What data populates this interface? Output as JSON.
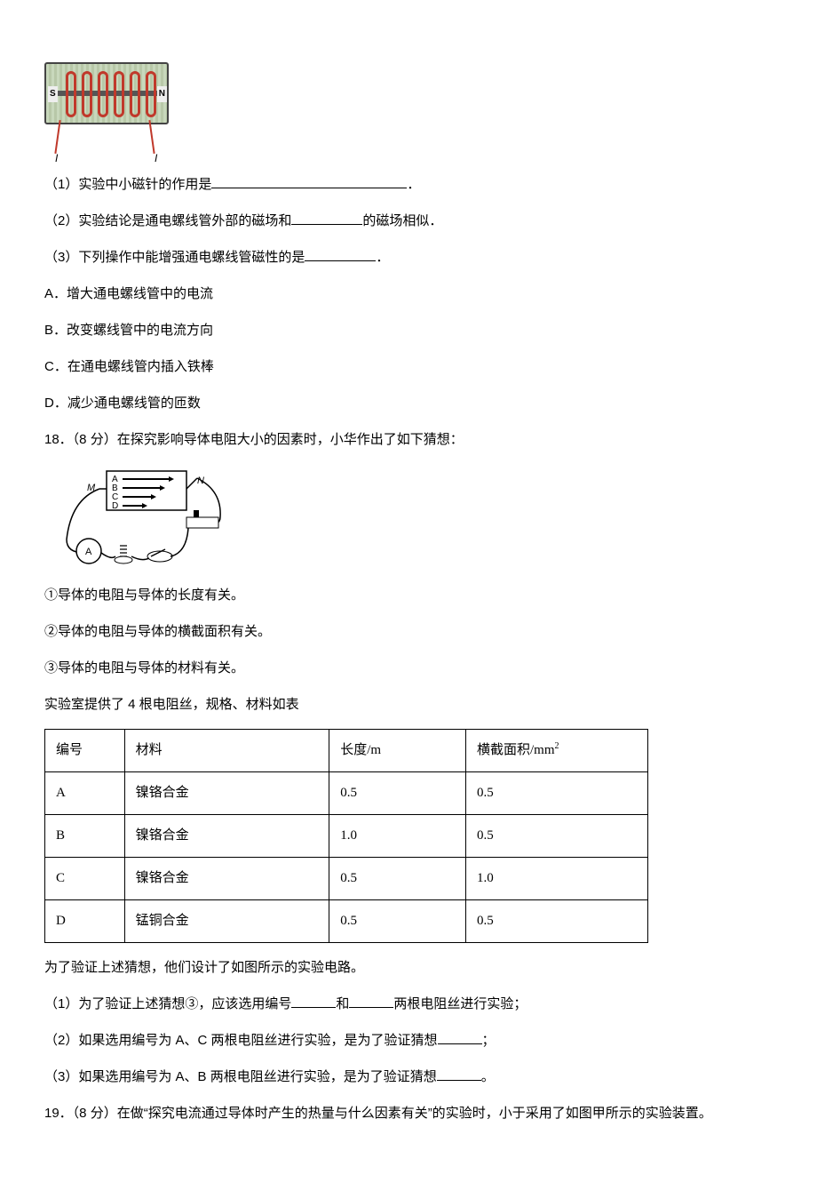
{
  "fig1": {
    "s_label": "S",
    "n_label": "N",
    "i_label": "I",
    "coil_color": "#c0392b",
    "board_bg_a": "#c8d8bc",
    "board_bg_b": "#b8c8a8",
    "coil_positions": [
      24,
      42,
      60,
      78,
      96,
      114
    ]
  },
  "q17": {
    "p1_a": "（1）实验中小磁针的作用是",
    "p1_b": "．",
    "p2_a": "（2）实验结论是通电螺线管外部的磁场和",
    "p2_b": "的磁场相似．",
    "p3_a": "（3）下列操作中能增强通电螺线管磁性的是",
    "p3_b": "．",
    "optA": "A．增大通电螺线管中的电流",
    "optB": "B．改变螺线管中的电流方向",
    "optC": "C．在通电螺线管内插入铁棒",
    "optD": "D．减少通电螺线管的匝数"
  },
  "q18": {
    "stem": "18．（8 分）在探究影响导体电阻大小的因素时，小华作出了如下猜想：",
    "fig_labels": {
      "M": "M",
      "N": "N",
      "A": "A",
      "B": "B",
      "C": "C",
      "D": "D"
    },
    "g1": "①导体的电阻与导体的长度有关。",
    "g2": "②导体的电阻与导体的横截面积有关。",
    "g3": "③导体的电阻与导体的材料有关。",
    "lab_line": "实验室提供了 4 根电阻丝，规格、材料如表",
    "table": {
      "columns": [
        "编号",
        "材料",
        "长度/m",
        "横截面积/mm²"
      ],
      "col3_html": "横截面积/mm",
      "rows": [
        [
          "A",
          "镍铬合金",
          "0.5",
          "0.5"
        ],
        [
          "B",
          "镍铬合金",
          "1.0",
          "0.5"
        ],
        [
          "C",
          "镍铬合金",
          "0.5",
          "1.0"
        ],
        [
          "D",
          "锰铜合金",
          "0.5",
          "0.5"
        ]
      ],
      "col_widths": [
        "70px",
        "180px",
        "120px",
        "160px"
      ]
    },
    "after": "为了验证上述猜想，他们设计了如图所示的实验电路。",
    "p1_a": "（1）为了验证上述猜想③，应该选用编号",
    "p1_mid": "和",
    "p1_b": "两根电阻丝进行实验；",
    "p2_a": "（2）如果选用编号为 A、C 两根电阻丝进行实验，是为了验证猜想",
    "p2_b": "；",
    "p3_a": "（3）如果选用编号为 A、B 两根电阻丝进行实验，是为了验证猜想",
    "p3_b": "。"
  },
  "q19": {
    "stem": "19．（8 分）在做“探究电流通过导体时产生的热量与什么因素有关”的实验时，小于采用了如图甲所示的实验装置。"
  }
}
